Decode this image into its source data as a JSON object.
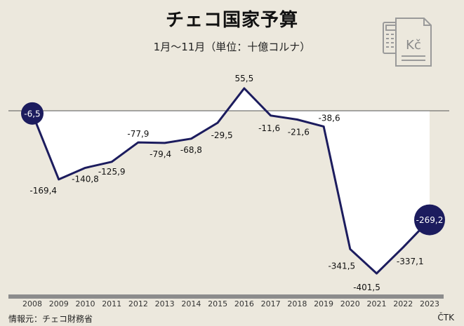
{
  "header": {
    "title": "チェコ国家予算",
    "subtitle": "1月〜11月（単位：十億コルナ）"
  },
  "footer": {
    "source": "情報元：チェコ財務省",
    "credit": "ČTK"
  },
  "logo": {
    "icon": "calculator-invoice-icon",
    "text": "Kč"
  },
  "colors": {
    "background": "#ece8dd",
    "line": "#1c1c5e",
    "area": "#ffffff",
    "axis_bar": "#8c8c8c",
    "zero_line": "#555555",
    "logo": "#9a9a9a"
  },
  "chart_data": {
    "type": "area",
    "title": "チェコ国家予算",
    "subtitle": "1月〜11月（単位：十億コルナ）",
    "categories": [
      "2008",
      "2009",
      "2010",
      "2011",
      "2012",
      "2013",
      "2014",
      "2015",
      "2016",
      "2017",
      "2018",
      "2019",
      "2020",
      "2021",
      "2022",
      "2023"
    ],
    "series": [
      {
        "values": [
          -6.5,
          -169.4,
          -140.8,
          -125.9,
          -77.9,
          -79.4,
          -68.8,
          -29.5,
          55.5,
          -11.6,
          -21.6,
          -38.6,
          -341.5,
          -401.5,
          -337.1,
          -269.2
        ],
        "labels": [
          "-6,5",
          "-169,4",
          "-140,8",
          "-125,9",
          "-77,9",
          "-79,4",
          "-68,8",
          "-29,5",
          "55,5",
          "-11,6",
          "-21,6",
          "-38,6",
          "-341,5",
          "-401,5",
          "-337,1",
          "-269,2"
        ]
      }
    ],
    "highlighted": [
      "2008",
      "2023"
    ],
    "ylim": [
      -401.5,
      55.5
    ],
    "grid": false,
    "legend": "none"
  }
}
